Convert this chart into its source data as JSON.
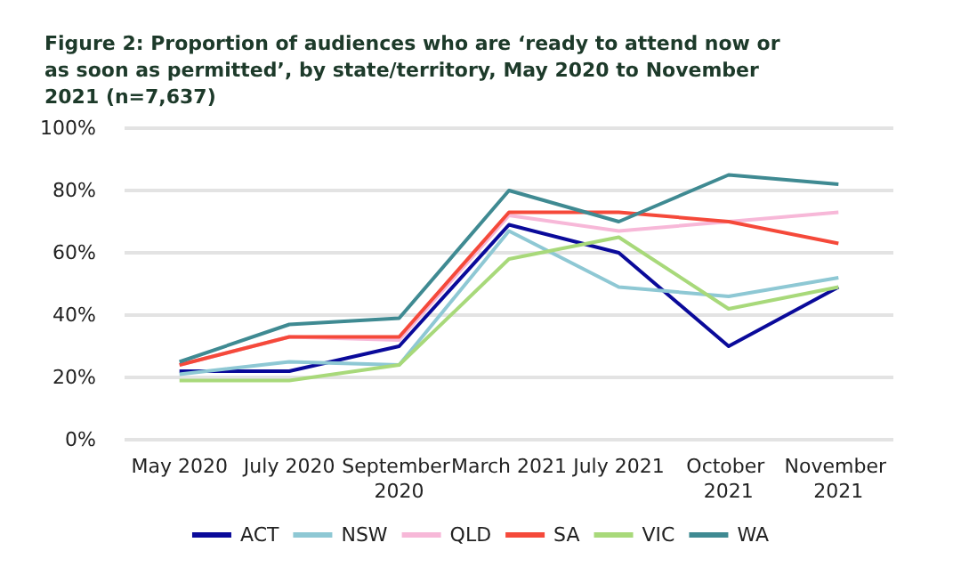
{
  "chart_data": {
    "type": "line",
    "title": "Figure 2: Proportion of audiences who are ‘ready to attend now or as soon as permitted’, by state/territory, May 2020 to November 2021 (n=7,637)",
    "categories": [
      "May 2020",
      "July 2020",
      "September 2020",
      "March 2021",
      "July 2021",
      "October 2021",
      "November 2021"
    ],
    "series": [
      {
        "name": "ACT",
        "color": "#0a0a9a",
        "values": [
          22,
          22,
          30,
          69,
          60,
          30,
          49
        ]
      },
      {
        "name": "NSW",
        "color": "#8ec8d4",
        "values": [
          21,
          25,
          24,
          67,
          49,
          46,
          52
        ]
      },
      {
        "name": "QLD",
        "color": "#f7b8d8",
        "values": [
          24,
          33,
          32,
          72,
          67,
          70,
          73
        ]
      },
      {
        "name": "SA",
        "color": "#f5493a",
        "values": [
          24,
          33,
          33,
          73,
          73,
          70,
          63
        ]
      },
      {
        "name": "VIC",
        "color": "#a8d97a",
        "values": [
          19,
          19,
          24,
          58,
          65,
          42,
          49
        ]
      },
      {
        "name": "WA",
        "color": "#3f8a92",
        "values": [
          25,
          37,
          39,
          80,
          70,
          85,
          82
        ]
      }
    ],
    "ylim": [
      0,
      100
    ],
    "yticks": [
      {
        "value": 0,
        "label": "0%"
      },
      {
        "value": 20,
        "label": "20%"
      },
      {
        "value": 40,
        "label": "40%"
      },
      {
        "value": 60,
        "label": "60%"
      },
      {
        "value": 80,
        "label": "80%"
      },
      {
        "value": 100,
        "label": "100%"
      }
    ],
    "grid": "y",
    "legend": "bottom",
    "marker": "none",
    "line_style": "solid"
  }
}
